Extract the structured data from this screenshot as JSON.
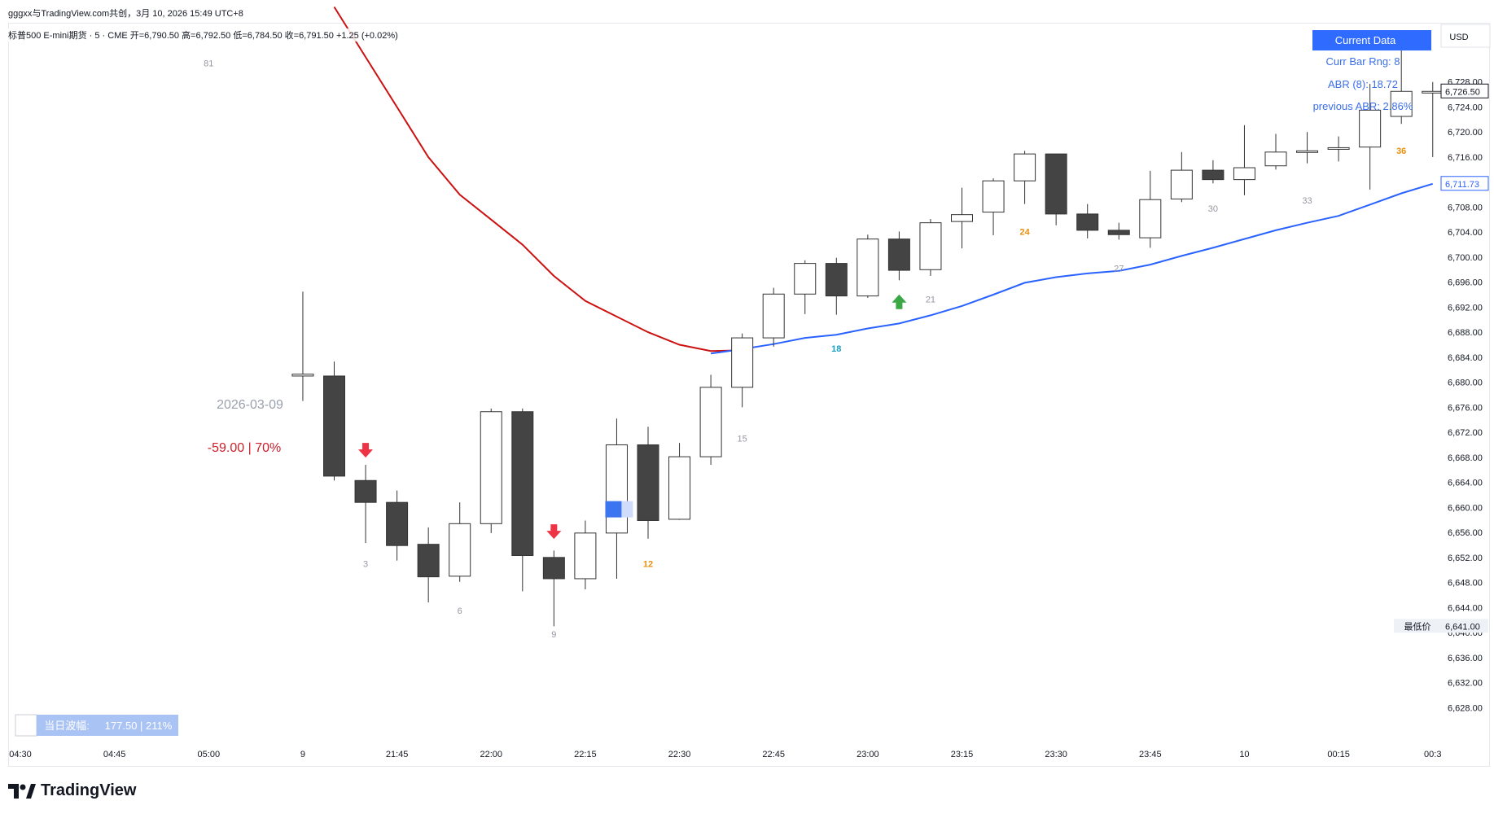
{
  "header": {
    "shared_by": "gggxx与TradingView.com共创，3月 10, 2026 15:49 UTC+8",
    "ohlc": "标普500 E-mini期货 · 5 · CME  开=6,790.50  高=6,792.50  低=6,784.50  收=6,791.50  +1.25 (+0.02%)"
  },
  "overlays": {
    "current_data_label": "Current Data",
    "curr_bar_rng": "Curr Bar Rng: 8",
    "abr": "ABR (8): 18.72",
    "previous": "previous ABR: 2.86%",
    "session_date": "2026-03-09",
    "session_move": "-59.00  |  70%",
    "daily_range_label": "当日波幅:",
    "daily_range_value": "177.50  |  211%",
    "currency": "USD",
    "low_price_label": "最低价",
    "low_price_value": "6,641.00",
    "last_price_value": "6,726.50",
    "ma_value_label": "6,711.73"
  },
  "colors": {
    "bull_body": "#ffffff",
    "bear_body": "#444444",
    "wick": "#333333",
    "ema_red": "#cc1111",
    "ema_blue": "#2962ff",
    "arrow_down": "#ee3344",
    "arrow_up": "#3aa845",
    "label_gray": "#9598a1",
    "label_orange": "#e8900f",
    "label_teal": "#1ba0c4"
  },
  "chart_data": {
    "type": "candlestick",
    "symbol": "标普500 E-mini期货",
    "timeframe": "5",
    "ylim": [
      6624,
      6732
    ],
    "y_ticks": [
      "6,628.00",
      "6,632.00",
      "6,636.00",
      "6,640.00",
      "6,644.00",
      "6,648.00",
      "6,652.00",
      "6,656.00",
      "6,660.00",
      "6,664.00",
      "6,668.00",
      "6,672.00",
      "6,676.00",
      "6,680.00",
      "6,684.00",
      "6,688.00",
      "6,692.00",
      "6,696.00",
      "6,700.00",
      "6,704.00",
      "6,708.00",
      "6,712.00",
      "6,716.00",
      "6,720.00",
      "6,724.00",
      "6,728.00"
    ],
    "x_ticks": [
      {
        "label": "04:30",
        "bar": 0
      },
      {
        "label": "04:45",
        "bar": 3
      },
      {
        "label": "05:00",
        "bar": 6
      },
      {
        "label": "9",
        "bar": 9
      },
      {
        "label": "21:45",
        "bar": 12
      },
      {
        "label": "22:00",
        "bar": 15
      },
      {
        "label": "22:15",
        "bar": 18
      },
      {
        "label": "22:30",
        "bar": 21
      },
      {
        "label": "22:45",
        "bar": 24
      },
      {
        "label": "23:00",
        "bar": 27
      },
      {
        "label": "23:15",
        "bar": 30
      },
      {
        "label": "23:30",
        "bar": 33
      },
      {
        "label": "23:45",
        "bar": 36
      },
      {
        "label": "10",
        "bar": 39
      },
      {
        "label": "00:15",
        "bar": 42
      },
      {
        "label": "00:3",
        "bar": 45
      }
    ],
    "candles": [
      {
        "bar": 9,
        "o": 6681.0,
        "h": 6694.5,
        "l": 6677.0,
        "c": 6681.3
      },
      {
        "bar": 10,
        "o": 6681.0,
        "h": 6683.3,
        "l": 6664.3,
        "c": 6665.0
      },
      {
        "bar": 11,
        "o": 6664.3,
        "h": 6666.8,
        "l": 6654.3,
        "c": 6660.8
      },
      {
        "bar": 12,
        "o": 6660.8,
        "h": 6662.7,
        "l": 6651.5,
        "c": 6653.9
      },
      {
        "bar": 13,
        "o": 6654.1,
        "h": 6656.8,
        "l": 6644.8,
        "c": 6648.9
      },
      {
        "bar": 14,
        "o": 6649.0,
        "h": 6660.8,
        "l": 6648.1,
        "c": 6657.4
      },
      {
        "bar": 15,
        "o": 6657.4,
        "h": 6675.8,
        "l": 6655.9,
        "c": 6675.3
      },
      {
        "bar": 16,
        "o": 6675.3,
        "h": 6675.8,
        "l": 6646.6,
        "c": 6652.3
      },
      {
        "bar": 17,
        "o": 6652.0,
        "h": 6653.1,
        "l": 6641.0,
        "c": 6648.6
      },
      {
        "bar": 18,
        "o": 6648.6,
        "h": 6657.9,
        "l": 6646.9,
        "c": 6655.9
      },
      {
        "bar": 19,
        "o": 6655.9,
        "h": 6674.2,
        "l": 6648.6,
        "c": 6670.0
      },
      {
        "bar": 20,
        "o": 6670.0,
        "h": 6672.9,
        "l": 6655.0,
        "c": 6657.9
      },
      {
        "bar": 21,
        "o": 6658.1,
        "h": 6670.3,
        "l": 6658.0,
        "c": 6668.1
      },
      {
        "bar": 22,
        "o": 6668.1,
        "h": 6681.2,
        "l": 6666.8,
        "c": 6679.2
      },
      {
        "bar": 23,
        "o": 6679.2,
        "h": 6687.8,
        "l": 6676.0,
        "c": 6687.1
      },
      {
        "bar": 24,
        "o": 6687.1,
        "h": 6695.1,
        "l": 6685.7,
        "c": 6694.1
      },
      {
        "bar": 25,
        "o": 6694.1,
        "h": 6699.5,
        "l": 6690.9,
        "c": 6699.0
      },
      {
        "bar": 26,
        "o": 6699.0,
        "h": 6699.9,
        "l": 6690.8,
        "c": 6693.8
      },
      {
        "bar": 27,
        "o": 6693.8,
        "h": 6703.6,
        "l": 6693.5,
        "c": 6702.9
      },
      {
        "bar": 28,
        "o": 6702.9,
        "h": 6704.1,
        "l": 6696.3,
        "c": 6697.9
      },
      {
        "bar": 29,
        "o": 6698.0,
        "h": 6706.1,
        "l": 6697.0,
        "c": 6705.5
      },
      {
        "bar": 30,
        "o": 6705.7,
        "h": 6711.1,
        "l": 6701.4,
        "c": 6706.8
      },
      {
        "bar": 31,
        "o": 6707.2,
        "h": 6712.6,
        "l": 6703.5,
        "c": 6712.2
      },
      {
        "bar": 32,
        "o": 6712.2,
        "h": 6717.0,
        "l": 6708.5,
        "c": 6716.5
      },
      {
        "bar": 33,
        "o": 6716.5,
        "h": 6716.5,
        "l": 6705.1,
        "c": 6706.9
      },
      {
        "bar": 34,
        "o": 6706.9,
        "h": 6708.5,
        "l": 6703.0,
        "c": 6704.3
      },
      {
        "bar": 35,
        "o": 6704.3,
        "h": 6705.5,
        "l": 6702.8,
        "c": 6703.6
      },
      {
        "bar": 36,
        "o": 6703.1,
        "h": 6713.8,
        "l": 6701.5,
        "c": 6709.2
      },
      {
        "bar": 37,
        "o": 6709.3,
        "h": 6716.8,
        "l": 6708.8,
        "c": 6713.9
      },
      {
        "bar": 38,
        "o": 6713.9,
        "h": 6715.5,
        "l": 6711.8,
        "c": 6712.4
      },
      {
        "bar": 39,
        "o": 6712.4,
        "h": 6721.1,
        "l": 6709.9,
        "c": 6714.3
      },
      {
        "bar": 40,
        "o": 6714.6,
        "h": 6719.7,
        "l": 6714.0,
        "c": 6716.8
      },
      {
        "bar": 41,
        "o": 6716.8,
        "h": 6720.0,
        "l": 6715.0,
        "c": 6717.0
      },
      {
        "bar": 42,
        "o": 6717.4,
        "h": 6719.3,
        "l": 6715.3,
        "c": 6717.5
      },
      {
        "bar": 43,
        "o": 6717.6,
        "h": 6727.7,
        "l": 6710.8,
        "c": 6723.5
      },
      {
        "bar": 44,
        "o": 6722.5,
        "h": 6736.0,
        "l": 6721.3,
        "c": 6726.5
      },
      {
        "bar": 45,
        "o": 6726.5,
        "h": 6728.0,
        "l": 6716.0,
        "c": 6726.5
      }
    ],
    "ema_red": [
      [
        10,
        6740.0
      ],
      [
        11,
        6732.0
      ],
      [
        12,
        6724.0
      ],
      [
        13,
        6716.0
      ],
      [
        14,
        6710.0
      ],
      [
        15,
        6706.0
      ],
      [
        16,
        6702.0
      ],
      [
        17,
        6697.0
      ],
      [
        18,
        6693.0
      ],
      [
        19,
        6690.5
      ],
      [
        20,
        6688.0
      ],
      [
        21,
        6686.0
      ],
      [
        22,
        6685.0
      ],
      [
        23,
        6685.1
      ]
    ],
    "ema_blue": [
      [
        22,
        6684.6
      ],
      [
        23,
        6685.3
      ],
      [
        24,
        6686.1
      ],
      [
        25,
        6687.1
      ],
      [
        26,
        6687.6
      ],
      [
        27,
        6688.6
      ],
      [
        28,
        6689.4
      ],
      [
        29,
        6690.7
      ],
      [
        30,
        6692.2
      ],
      [
        31,
        6694.0
      ],
      [
        32,
        6695.9
      ],
      [
        33,
        6696.8
      ],
      [
        34,
        6697.4
      ],
      [
        35,
        6697.8
      ],
      [
        36,
        6698.8
      ],
      [
        37,
        6700.2
      ],
      [
        38,
        6701.5
      ],
      [
        39,
        6702.9
      ],
      [
        40,
        6704.3
      ],
      [
        41,
        6705.5
      ],
      [
        42,
        6706.6
      ],
      [
        43,
        6708.4
      ],
      [
        44,
        6710.2
      ],
      [
        45,
        6711.73
      ]
    ],
    "bar_number_labels": [
      {
        "text": "81",
        "bar": 6,
        "price": 6730.5,
        "tone": "gray"
      },
      {
        "text": "3",
        "bar": 11,
        "price": 6650.5,
        "tone": "gray"
      },
      {
        "text": "6",
        "bar": 14,
        "price": 6643.0,
        "tone": "gray"
      },
      {
        "text": "9",
        "bar": 17,
        "price": 6639.2,
        "tone": "gray"
      },
      {
        "text": "12",
        "bar": 20,
        "price": 6650.5,
        "tone": "orange"
      },
      {
        "text": "15",
        "bar": 23,
        "price": 6670.5,
        "tone": "gray"
      },
      {
        "text": "18",
        "bar": 26,
        "price": 6684.9,
        "tone": "teal"
      },
      {
        "text": "21",
        "bar": 29,
        "price": 6692.8,
        "tone": "gray"
      },
      {
        "text": "24",
        "bar": 32,
        "price": 6703.6,
        "tone": "orange"
      },
      {
        "text": "27",
        "bar": 35,
        "price": 6697.7,
        "tone": "gray"
      },
      {
        "text": "30",
        "bar": 38,
        "price": 6707.3,
        "tone": "gray"
      },
      {
        "text": "33",
        "bar": 41,
        "price": 6708.6,
        "tone": "gray"
      },
      {
        "text": "36",
        "bar": 44,
        "price": 6716.5,
        "tone": "orange"
      }
    ],
    "signals": [
      {
        "type": "down",
        "bar": 11,
        "price": 6669.0
      },
      {
        "type": "down",
        "bar": 17,
        "price": 6656.0
      },
      {
        "type": "up",
        "bar": 28,
        "price": 6693.0
      }
    ],
    "marker_box": {
      "bar": 19,
      "price_top": 6661.0,
      "price_bottom": 6658.4
    }
  }
}
